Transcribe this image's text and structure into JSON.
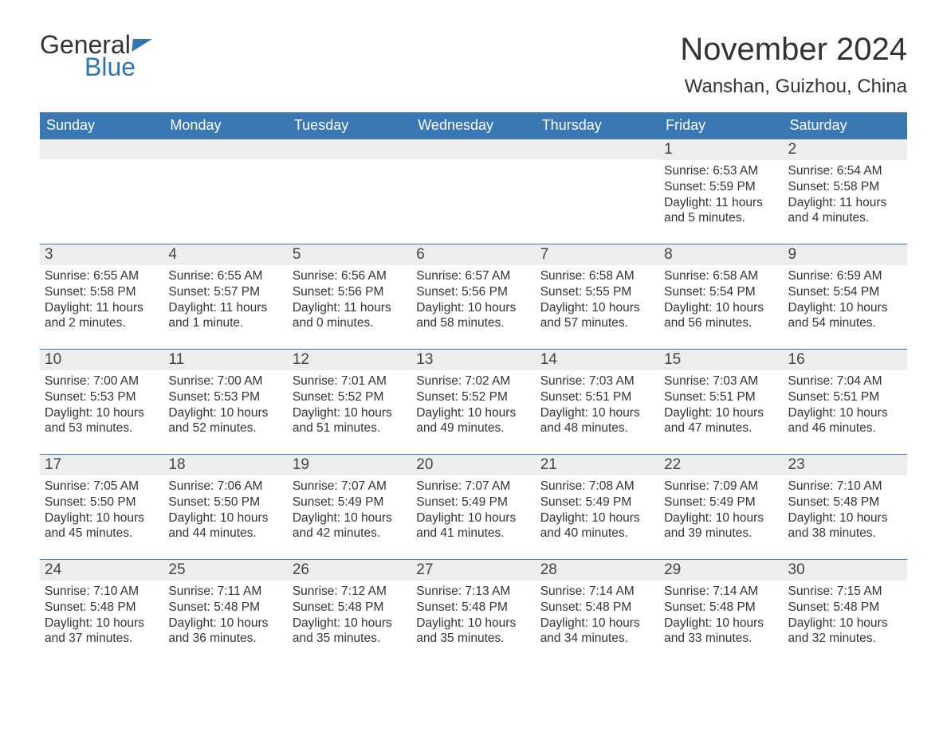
{
  "brand": {
    "word1": "General",
    "word2": "Blue",
    "brand_color": "#2e75b6"
  },
  "title": "November 2024",
  "location": "Wanshan, Guizhou, China",
  "header_bg": "#3a78b5",
  "header_fg": "#ffffff",
  "daynum_bg": "#ededed",
  "weekdays": [
    "Sunday",
    "Monday",
    "Tuesday",
    "Wednesday",
    "Thursday",
    "Friday",
    "Saturday"
  ],
  "weeks": [
    [
      null,
      null,
      null,
      null,
      null,
      {
        "n": "1",
        "sunrise": "6:53 AM",
        "sunset": "5:59 PM",
        "daylight": "11 hours and 5 minutes."
      },
      {
        "n": "2",
        "sunrise": "6:54 AM",
        "sunset": "5:58 PM",
        "daylight": "11 hours and 4 minutes."
      }
    ],
    [
      {
        "n": "3",
        "sunrise": "6:55 AM",
        "sunset": "5:58 PM",
        "daylight": "11 hours and 2 minutes."
      },
      {
        "n": "4",
        "sunrise": "6:55 AM",
        "sunset": "5:57 PM",
        "daylight": "11 hours and 1 minute."
      },
      {
        "n": "5",
        "sunrise": "6:56 AM",
        "sunset": "5:56 PM",
        "daylight": "11 hours and 0 minutes."
      },
      {
        "n": "6",
        "sunrise": "6:57 AM",
        "sunset": "5:56 PM",
        "daylight": "10 hours and 58 minutes."
      },
      {
        "n": "7",
        "sunrise": "6:58 AM",
        "sunset": "5:55 PM",
        "daylight": "10 hours and 57 minutes."
      },
      {
        "n": "8",
        "sunrise": "6:58 AM",
        "sunset": "5:54 PM",
        "daylight": "10 hours and 56 minutes."
      },
      {
        "n": "9",
        "sunrise": "6:59 AM",
        "sunset": "5:54 PM",
        "daylight": "10 hours and 54 minutes."
      }
    ],
    [
      {
        "n": "10",
        "sunrise": "7:00 AM",
        "sunset": "5:53 PM",
        "daylight": "10 hours and 53 minutes."
      },
      {
        "n": "11",
        "sunrise": "7:00 AM",
        "sunset": "5:53 PM",
        "daylight": "10 hours and 52 minutes."
      },
      {
        "n": "12",
        "sunrise": "7:01 AM",
        "sunset": "5:52 PM",
        "daylight": "10 hours and 51 minutes."
      },
      {
        "n": "13",
        "sunrise": "7:02 AM",
        "sunset": "5:52 PM",
        "daylight": "10 hours and 49 minutes."
      },
      {
        "n": "14",
        "sunrise": "7:03 AM",
        "sunset": "5:51 PM",
        "daylight": "10 hours and 48 minutes."
      },
      {
        "n": "15",
        "sunrise": "7:03 AM",
        "sunset": "5:51 PM",
        "daylight": "10 hours and 47 minutes."
      },
      {
        "n": "16",
        "sunrise": "7:04 AM",
        "sunset": "5:51 PM",
        "daylight": "10 hours and 46 minutes."
      }
    ],
    [
      {
        "n": "17",
        "sunrise": "7:05 AM",
        "sunset": "5:50 PM",
        "daylight": "10 hours and 45 minutes."
      },
      {
        "n": "18",
        "sunrise": "7:06 AM",
        "sunset": "5:50 PM",
        "daylight": "10 hours and 44 minutes."
      },
      {
        "n": "19",
        "sunrise": "7:07 AM",
        "sunset": "5:49 PM",
        "daylight": "10 hours and 42 minutes."
      },
      {
        "n": "20",
        "sunrise": "7:07 AM",
        "sunset": "5:49 PM",
        "daylight": "10 hours and 41 minutes."
      },
      {
        "n": "21",
        "sunrise": "7:08 AM",
        "sunset": "5:49 PM",
        "daylight": "10 hours and 40 minutes."
      },
      {
        "n": "22",
        "sunrise": "7:09 AM",
        "sunset": "5:49 PM",
        "daylight": "10 hours and 39 minutes."
      },
      {
        "n": "23",
        "sunrise": "7:10 AM",
        "sunset": "5:48 PM",
        "daylight": "10 hours and 38 minutes."
      }
    ],
    [
      {
        "n": "24",
        "sunrise": "7:10 AM",
        "sunset": "5:48 PM",
        "daylight": "10 hours and 37 minutes."
      },
      {
        "n": "25",
        "sunrise": "7:11 AM",
        "sunset": "5:48 PM",
        "daylight": "10 hours and 36 minutes."
      },
      {
        "n": "26",
        "sunrise": "7:12 AM",
        "sunset": "5:48 PM",
        "daylight": "10 hours and 35 minutes."
      },
      {
        "n": "27",
        "sunrise": "7:13 AM",
        "sunset": "5:48 PM",
        "daylight": "10 hours and 35 minutes."
      },
      {
        "n": "28",
        "sunrise": "7:14 AM",
        "sunset": "5:48 PM",
        "daylight": "10 hours and 34 minutes."
      },
      {
        "n": "29",
        "sunrise": "7:14 AM",
        "sunset": "5:48 PM",
        "daylight": "10 hours and 33 minutes."
      },
      {
        "n": "30",
        "sunrise": "7:15 AM",
        "sunset": "5:48 PM",
        "daylight": "10 hours and 32 minutes."
      }
    ]
  ],
  "labels": {
    "sunrise": "Sunrise: ",
    "sunset": "Sunset: ",
    "daylight": "Daylight: "
  }
}
